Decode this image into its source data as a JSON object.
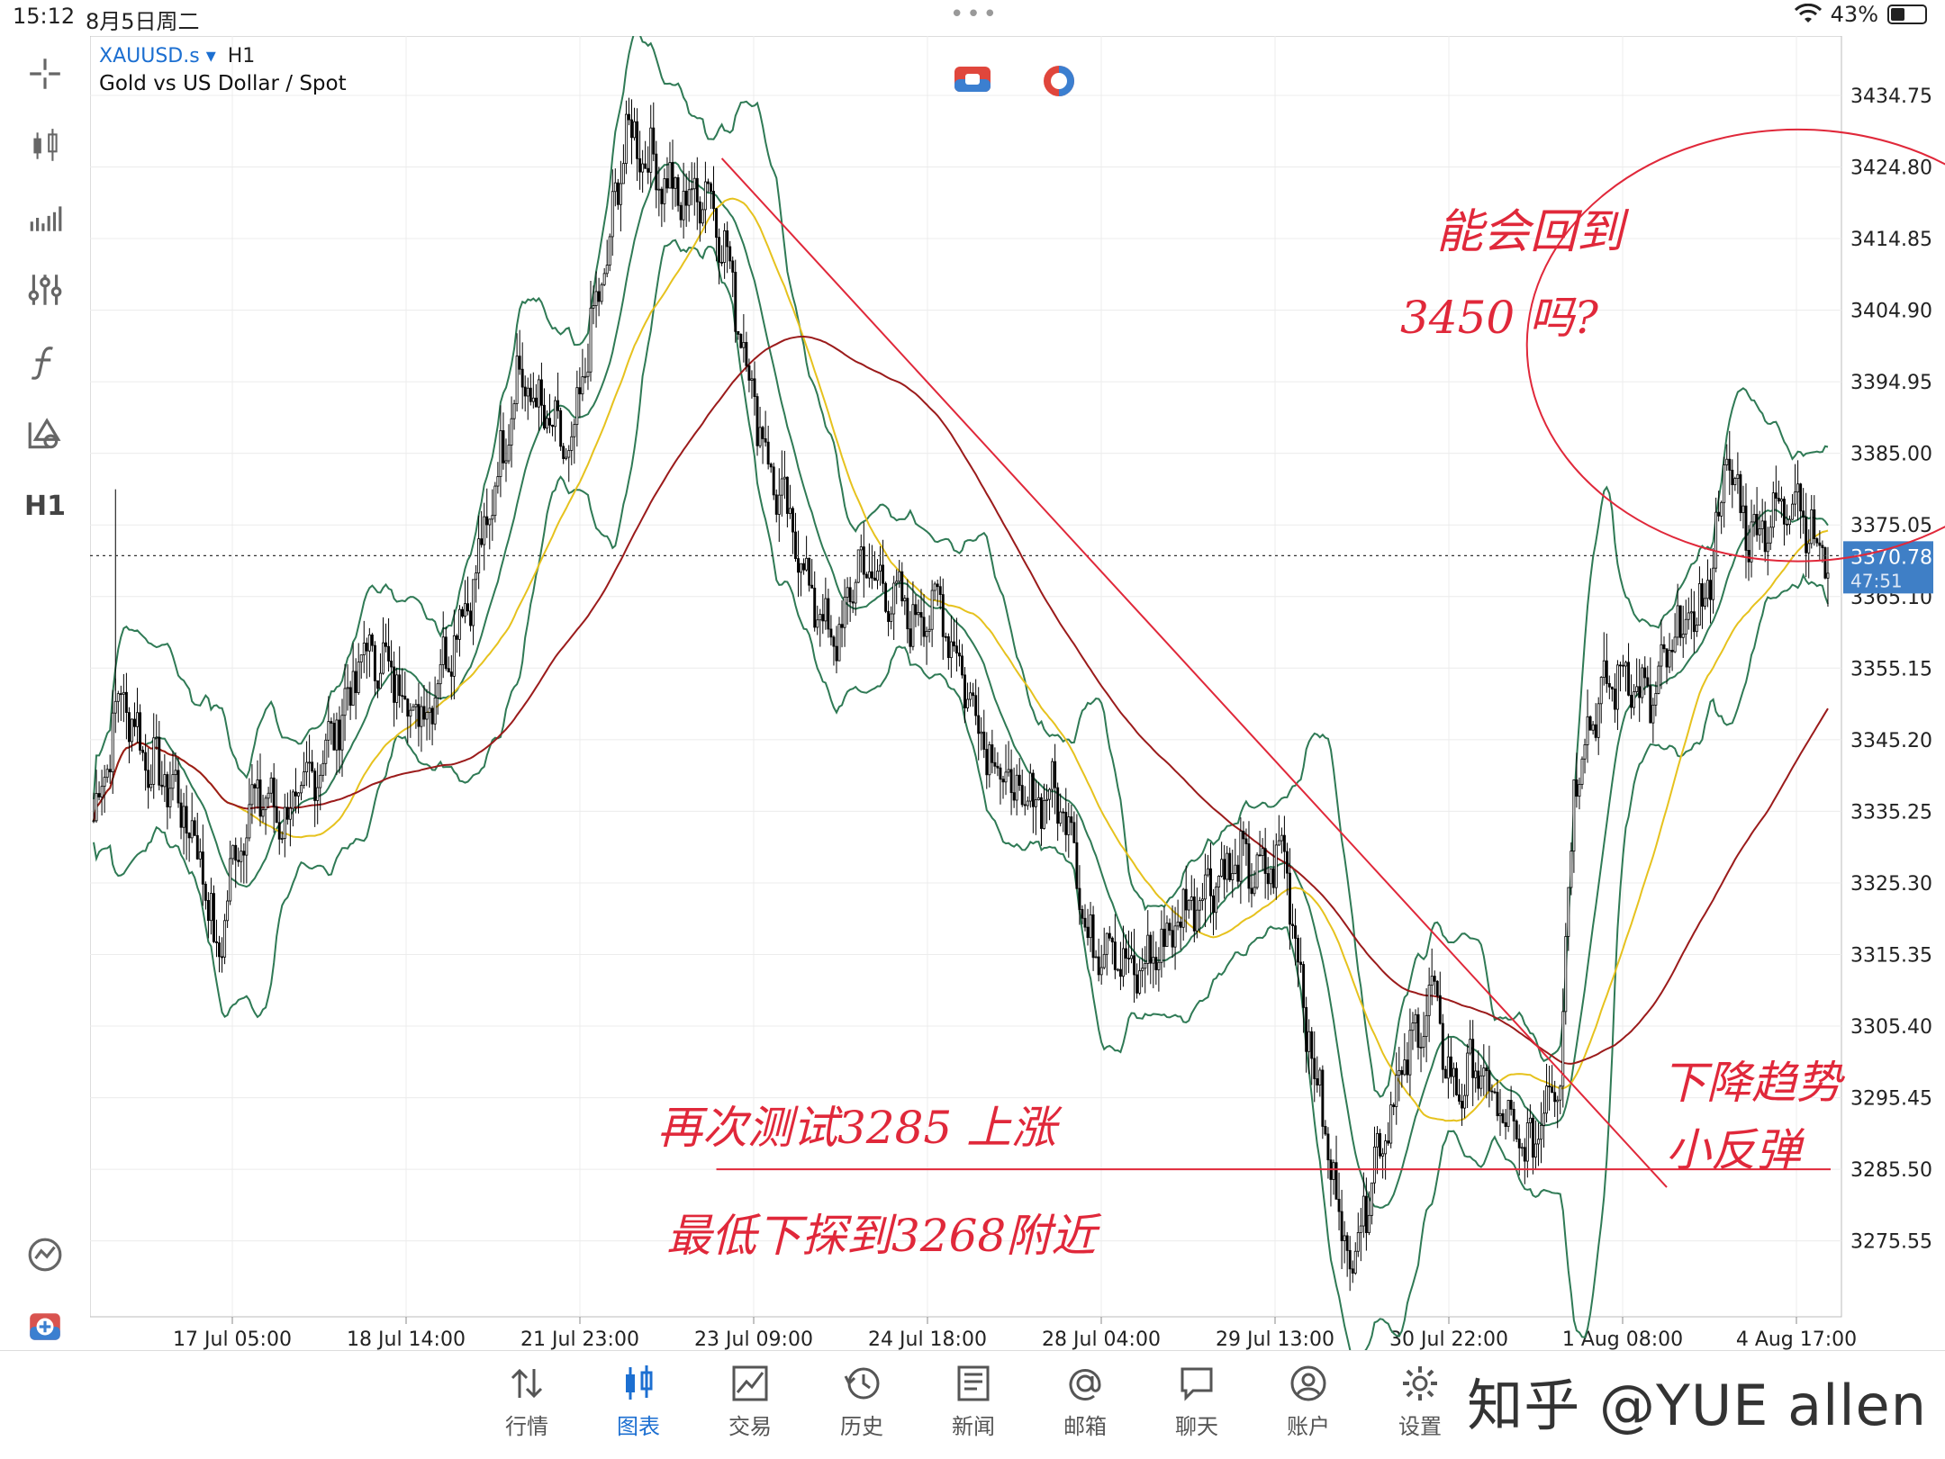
{
  "status_bar": {
    "time": "15:12",
    "date": "8月5日周二",
    "battery": "43%",
    "battery_level": 0.43
  },
  "chart_header": {
    "symbol": "XAUUSD.s",
    "dropdown_marker": "▾",
    "timeframe": "H1",
    "description": "Gold vs US Dollar / Spot"
  },
  "toolbar": {
    "timeframe_label": "H1"
  },
  "colors": {
    "bull_body": "#ffffff",
    "bear_body": "#000000",
    "candle_line": "#000000",
    "bollinger": "#2f7a55",
    "ma_fast": "#e6c21e",
    "ma_slow": "#9b1b1b",
    "trendline": "#e0283a",
    "annotation": "#e0283a",
    "price_label_bg": "#3f7fc6"
  },
  "chart_data": {
    "type": "candlestick",
    "ylim": [
      3265.0,
      3443.0
    ],
    "y_ticks": [
      "3434.75",
      "3424.80",
      "3414.85",
      "3404.90",
      "3394.95",
      "3385.00",
      "3375.05",
      "3365.10",
      "3355.15",
      "3345.20",
      "3335.25",
      "3325.30",
      "3315.35",
      "3305.40",
      "3295.45",
      "3285.50",
      "3275.55"
    ],
    "x_ticks": [
      "17 Jul 05:00",
      "18 Jul 14:00",
      "21 Jul 23:00",
      "23 Jul 09:00",
      "24 Jul 18:00",
      "28 Jul 04:00",
      "29 Jul 13:00",
      "30 Jul 22:00",
      "1 Aug 08:00",
      "4 Aug 17:00"
    ],
    "current_price": {
      "price": "3370.78",
      "countdown": "47:51",
      "value": 3370.78
    },
    "close_path": [
      [
        0,
        3334
      ],
      [
        10,
        3352
      ],
      [
        20,
        3342
      ],
      [
        30,
        3338
      ],
      [
        40,
        3328
      ],
      [
        45,
        3314
      ],
      [
        52,
        3330
      ],
      [
        60,
        3338
      ],
      [
        70,
        3334
      ],
      [
        80,
        3340
      ],
      [
        90,
        3348
      ],
      [
        100,
        3358
      ],
      [
        110,
        3354
      ],
      [
        120,
        3348
      ],
      [
        130,
        3358
      ],
      [
        140,
        3368
      ],
      [
        150,
        3386
      ],
      [
        155,
        3396
      ],
      [
        165,
        3390
      ],
      [
        175,
        3384
      ],
      [
        180,
        3398
      ],
      [
        188,
        3412
      ],
      [
        195,
        3430
      ],
      [
        205,
        3425
      ],
      [
        215,
        3420
      ],
      [
        225,
        3422
      ],
      [
        232,
        3412
      ],
      [
        240,
        3396
      ],
      [
        248,
        3382
      ],
      [
        256,
        3374
      ],
      [
        264,
        3364
      ],
      [
        272,
        3358
      ],
      [
        280,
        3370
      ],
      [
        290,
        3366
      ],
      [
        300,
        3362
      ],
      [
        310,
        3364
      ],
      [
        320,
        3352
      ],
      [
        330,
        3342
      ],
      [
        340,
        3336
      ],
      [
        350,
        3338
      ],
      [
        358,
        3334
      ],
      [
        364,
        3316
      ],
      [
        372,
        3318
      ],
      [
        380,
        3312
      ],
      [
        390,
        3316
      ],
      [
        400,
        3322
      ],
      [
        410,
        3326
      ],
      [
        420,
        3328
      ],
      [
        428,
        3326
      ],
      [
        436,
        3330
      ],
      [
        444,
        3306
      ],
      [
        452,
        3288
      ],
      [
        460,
        3272
      ],
      [
        470,
        3288
      ],
      [
        480,
        3300
      ],
      [
        490,
        3310
      ],
      [
        498,
        3296
      ],
      [
        506,
        3300
      ],
      [
        514,
        3294
      ],
      [
        520,
        3290
      ],
      [
        526,
        3288
      ],
      [
        532,
        3296
      ],
      [
        537,
        3300
      ],
      [
        542,
        3340
      ],
      [
        550,
        3350
      ],
      [
        560,
        3355
      ],
      [
        570,
        3350
      ],
      [
        580,
        3360
      ],
      [
        590,
        3364
      ],
      [
        598,
        3384
      ],
      [
        606,
        3374
      ],
      [
        615,
        3376
      ],
      [
        624,
        3380
      ],
      [
        630,
        3372
      ],
      [
        635,
        3371
      ]
    ],
    "indicators": [
      "Bollinger Bands",
      "MA fast (yellow)",
      "MA slow (dark red)"
    ],
    "trendline": [
      [
        230,
        3426
      ],
      [
        576,
        3283
      ]
    ],
    "support_line": {
      "from": 228,
      "to": 636,
      "price": 3285.5
    },
    "circle_annotation": {
      "cx": 624,
      "cy": 3400,
      "rx": 31,
      "ry": 30
    },
    "n_bars": 636
  },
  "annotations": {
    "top_line1": "能会回到",
    "top_line2": "3450 吗?",
    "mid_line1": "再次测试3285 上涨",
    "mid_line2": "最低下探到3268附近",
    "right_line1": "下降趋势",
    "right_line2": "小反弹"
  },
  "bottom_nav": [
    {
      "label": "行情",
      "icon": "quotes-icon"
    },
    {
      "label": "图表",
      "icon": "chart-icon",
      "active": true
    },
    {
      "label": "交易",
      "icon": "trade-icon"
    },
    {
      "label": "历史",
      "icon": "history-icon"
    },
    {
      "label": "新闻",
      "icon": "news-icon"
    },
    {
      "label": "邮箱",
      "icon": "mail-icon"
    },
    {
      "label": "聊天",
      "icon": "chat-icon"
    },
    {
      "label": "账户",
      "icon": "account-icon"
    },
    {
      "label": "设置",
      "icon": "settings-icon"
    }
  ],
  "watermark": "知乎 @YUE allen"
}
